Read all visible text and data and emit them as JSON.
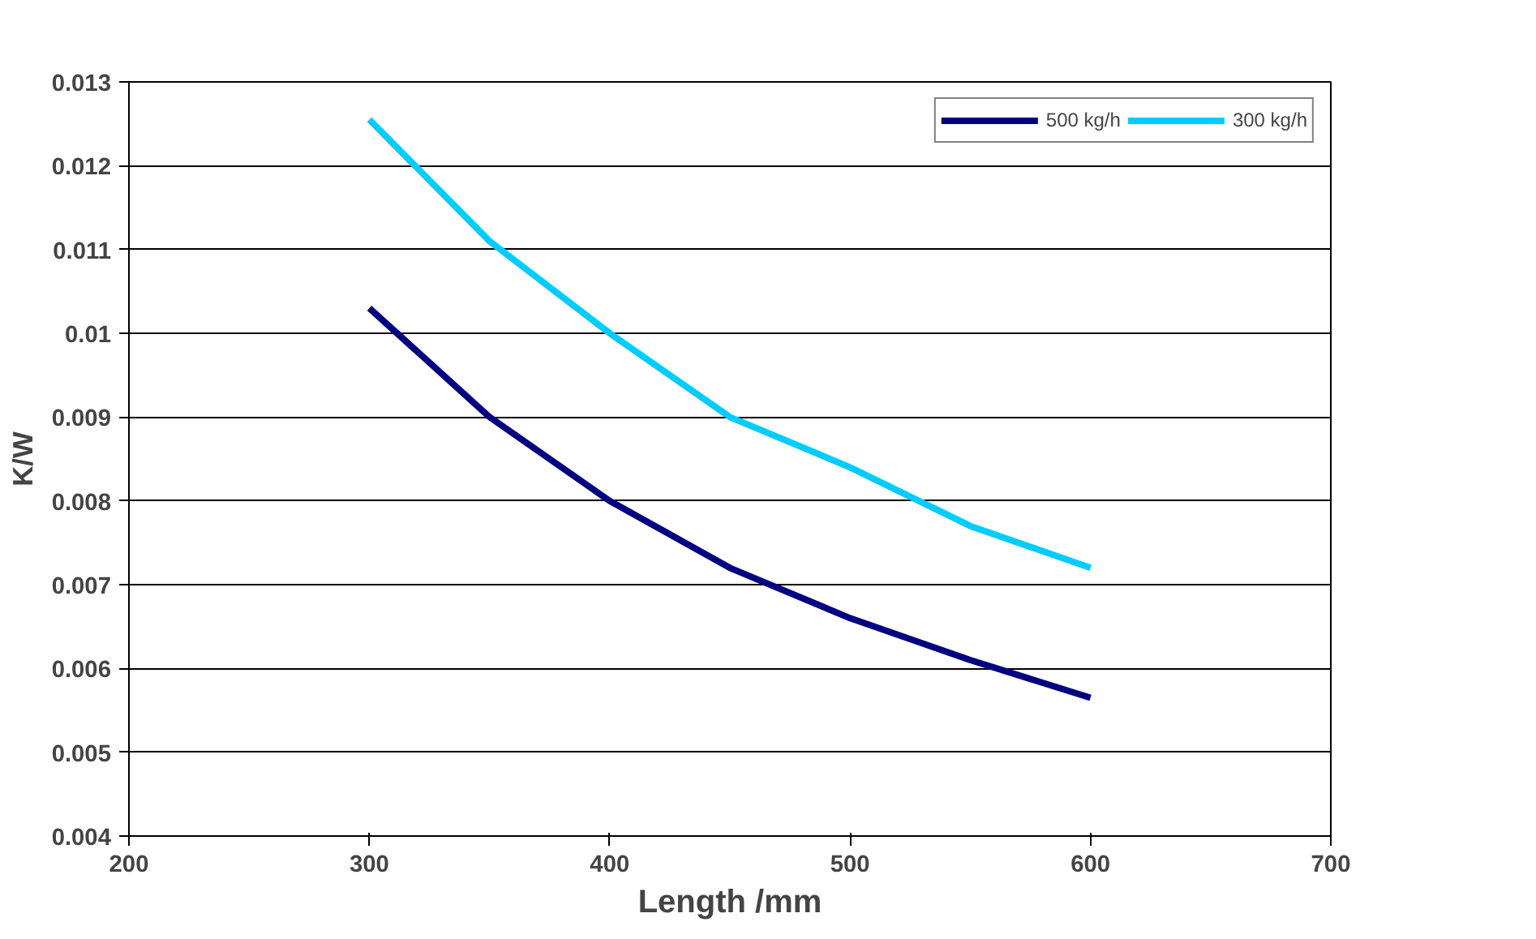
{
  "chart_data": {
    "type": "line",
    "xlabel": "Length /mm",
    "ylabel": "K/W",
    "x": [
      300,
      350,
      400,
      450,
      500,
      550,
      600
    ],
    "series": [
      {
        "name": "500 kg/h",
        "color": "#000080",
        "values": [
          0.0103,
          0.009,
          0.008,
          0.0072,
          0.0066,
          0.0061,
          0.00565
        ]
      },
      {
        "name": "300 kg/h",
        "color": "#00ccff",
        "values": [
          0.01255,
          0.0111,
          0.01,
          0.009,
          0.0084,
          0.0077,
          0.0072
        ]
      }
    ],
    "xlim": [
      200,
      700
    ],
    "xticks": [
      200,
      300,
      400,
      500,
      600,
      700
    ],
    "ylim": [
      0.004,
      0.013
    ],
    "yticks": [
      0.004,
      0.005,
      0.006,
      0.007,
      0.008,
      0.009,
      0.01,
      0.011,
      0.012,
      0.013
    ],
    "grid": "y",
    "legend": "top right",
    "line_style": "solid",
    "marker": "none"
  }
}
